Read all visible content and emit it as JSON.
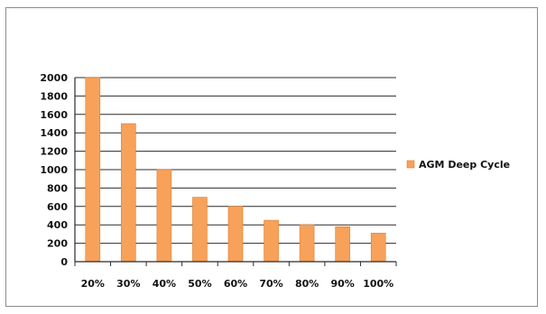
{
  "chart_data": {
    "type": "bar",
    "categories": [
      "20%",
      "30%",
      "40%",
      "50%",
      "60%",
      "70%",
      "80%",
      "90%",
      "100%"
    ],
    "series": [
      {
        "name": "AGM Deep Cycle",
        "values": [
          2000,
          1500,
          1000,
          700,
          600,
          450,
          400,
          380,
          310
        ]
      }
    ],
    "yticks": [
      "0",
      "200",
      "400",
      "600",
      "800",
      "1000",
      "1200",
      "1400",
      "1600",
      "1800",
      "2000"
    ],
    "ylim": [
      0,
      2000
    ],
    "grid": true,
    "legend_position": "right",
    "colors": {
      "bar": "#f7a15a",
      "bar_edge": "#e07f2e",
      "grid": "#2b2b2b",
      "axis": "#2b2b2b"
    }
  }
}
